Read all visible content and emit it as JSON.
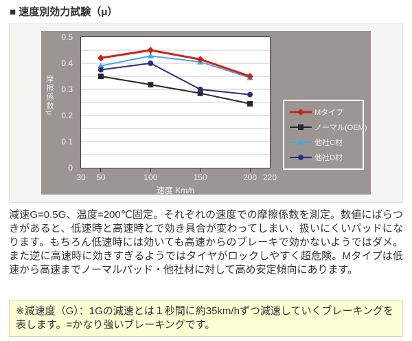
{
  "page": {
    "title": "■ 速度別効力試験（μ）"
  },
  "colors": {
    "chart_bg": "#9b9593",
    "panel_bg": "#f5f5f3",
    "note_bg": "#ffffd6",
    "note_border": "#d8d8a6",
    "tick_text": "#f0eeec",
    "body_text": "#333333"
  },
  "chart_data": {
    "type": "line",
    "x": [
      50,
      100,
      150,
      200
    ],
    "xlabel": "速度 Km/h",
    "ylabel": "摩擦係数μ",
    "xlim": [
      30,
      220
    ],
    "ylim": [
      0,
      0.5
    ],
    "x_ticks": [
      30,
      50,
      100,
      150,
      200,
      220
    ],
    "y_ticks": [
      0,
      0.1,
      0.2,
      0.3,
      0.4,
      0.5
    ],
    "grid_step": 0.05,
    "grid": true,
    "legend_position": "right-of-plot",
    "series": [
      {
        "name": "Mタイプ",
        "color": "#cf2318",
        "marker": "diamond",
        "line_width": 3,
        "values": [
          0.42,
          0.45,
          0.415,
          0.35
        ]
      },
      {
        "name": "ノーマル(OEM)",
        "color": "#272727",
        "marker": "square",
        "line_width": 2,
        "values": [
          0.35,
          0.318,
          0.285,
          0.245
        ]
      },
      {
        "name": "他社C材",
        "color": "#4fa6dc",
        "marker": "triangle",
        "line_width": 2,
        "values": [
          0.39,
          0.428,
          0.405,
          0.345
        ]
      },
      {
        "name": "他社D材",
        "color": "#2d2d7d",
        "marker": "circle",
        "line_width": 2,
        "values": [
          0.375,
          0.4,
          0.3,
          0.28
        ]
      }
    ]
  },
  "description": "減速G=0.5G、温度=200℃固定。それぞれの速度での摩擦係数を測定。数値にばらつきがあると、低速時と高速時とで効き具合が変わってしまい、扱いにくいパッドになります。もちろん低速時には効いても高速からのブレーキで効かないようではダメ。また逆に高速時に効きすぎるようではタイヤがロックしやすく超危険。Mタイプは低速から高速までノーマルパッド・他社材に対して高め安定傾向にあります。",
  "note": "※減速度（G）：1Gの減速とは１秒間に約35km/hずつ減速していくブレーキングを表します。=かなり強いブレーキングです。"
}
